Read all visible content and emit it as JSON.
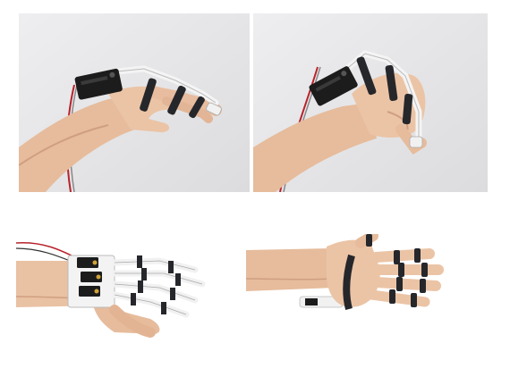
{
  "figure": {
    "panels": [
      {
        "id": "p1",
        "subject": "exoskeleton-hand-open"
      },
      {
        "id": "p2",
        "subject": "exoskeleton-hand-closed"
      },
      {
        "id": "p3",
        "subject": "multi-finger-exoskeleton-top"
      },
      {
        "id": "p4",
        "subject": "palm-side-straps"
      }
    ],
    "colors": {
      "background": "#ffffff",
      "photo_bg": "#e6e6e8",
      "skin": "#e9c1a3",
      "skin_shadow": "#cf9f80",
      "strap": "#26272b",
      "frame": "#f1f1f1",
      "servo": "#1c1c1c",
      "wire_red": "#b8222b"
    }
  }
}
